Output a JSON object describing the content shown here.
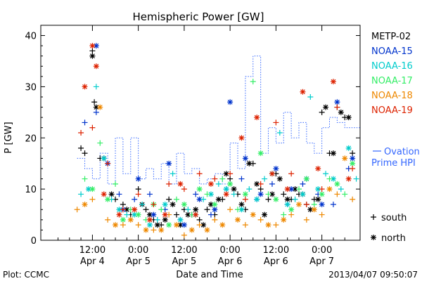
{
  "chart_data": {
    "type": "scatter",
    "title": "Hemispheric Power [GW]",
    "xlabel": "Date and Time",
    "ylabel": "P [GW]",
    "ylim": [
      0,
      42
    ],
    "yticks": [
      0,
      10,
      20,
      30,
      40
    ],
    "xlim": [
      -1.5,
      82
    ],
    "x_unit": "hours since 00:00 Apr 4",
    "xticks": [
      {
        "x": 12,
        "label_time": "12:00",
        "label_date": "Apr 4"
      },
      {
        "x": 24,
        "label_time": "0:00",
        "label_date": "Apr 5"
      },
      {
        "x": 36,
        "label_time": "12:00",
        "label_date": "Apr 5"
      },
      {
        "x": 48,
        "label_time": "0:00",
        "label_date": "Apr 6"
      },
      {
        "x": 60,
        "label_time": "12:00",
        "label_date": "Apr 6"
      },
      {
        "x": 72,
        "label_time": "0:00",
        "label_date": "Apr 7"
      }
    ],
    "legend_position": "right",
    "series": [
      {
        "name": "METP-02",
        "color": "#000000",
        "south": [
          [
            9,
            18
          ],
          [
            10,
            17
          ],
          [
            12,
            37
          ],
          [
            12.5,
            27
          ],
          [
            14,
            16
          ],
          [
            18,
            8
          ],
          [
            20,
            7
          ],
          [
            22,
            5
          ],
          [
            24,
            10
          ],
          [
            26,
            6
          ],
          [
            28,
            4
          ],
          [
            30,
            3
          ],
          [
            32,
            8
          ],
          [
            34,
            5
          ],
          [
            36,
            6
          ],
          [
            38,
            5
          ],
          [
            40,
            4
          ],
          [
            42,
            6
          ],
          [
            44,
            5
          ],
          [
            46,
            8
          ],
          [
            48,
            12
          ],
          [
            50,
            9
          ],
          [
            52,
            6
          ],
          [
            54,
            15
          ],
          [
            56,
            10
          ],
          [
            58,
            8
          ],
          [
            60,
            13
          ],
          [
            62,
            9
          ],
          [
            64,
            8
          ],
          [
            66,
            9
          ],
          [
            68,
            7
          ],
          [
            70,
            8
          ],
          [
            72,
            25
          ],
          [
            74,
            17
          ],
          [
            76,
            26
          ],
          [
            78,
            24
          ],
          [
            80,
            17
          ]
        ],
        "north": [
          [
            12,
            36
          ],
          [
            13,
            26
          ],
          [
            15,
            16
          ],
          [
            17,
            9
          ],
          [
            21,
            6
          ],
          [
            25,
            7
          ],
          [
            27,
            5
          ],
          [
            29,
            3
          ],
          [
            31,
            4
          ],
          [
            33,
            7
          ],
          [
            35,
            3
          ],
          [
            37,
            5
          ],
          [
            39,
            6
          ],
          [
            41,
            3
          ],
          [
            43,
            7
          ],
          [
            45,
            8
          ],
          [
            47,
            13
          ],
          [
            49,
            10
          ],
          [
            51,
            7
          ],
          [
            53,
            15
          ],
          [
            55,
            11
          ],
          [
            57,
            5
          ],
          [
            59,
            9
          ],
          [
            61,
            12
          ],
          [
            63,
            8
          ],
          [
            65,
            10
          ],
          [
            67,
            9
          ],
          [
            69,
            6
          ],
          [
            71,
            8
          ],
          [
            73,
            26
          ],
          [
            75,
            17
          ],
          [
            77,
            25
          ],
          [
            79,
            24
          ]
        ]
      },
      {
        "name": "NOAA-15",
        "color": "#0033cc",
        "south": [
          [
            10,
            23
          ],
          [
            13,
            25
          ],
          [
            15,
            16
          ],
          [
            19,
            9
          ],
          [
            23,
            8
          ],
          [
            27,
            9
          ],
          [
            31,
            6
          ],
          [
            35,
            4
          ],
          [
            39,
            9
          ],
          [
            43,
            5
          ],
          [
            47,
            10
          ],
          [
            51,
            12
          ],
          [
            55,
            8
          ],
          [
            59,
            11
          ],
          [
            63,
            7
          ],
          [
            67,
            11
          ],
          [
            71,
            9
          ],
          [
            75,
            7
          ],
          [
            79,
            14
          ]
        ],
        "north": [
          [
            13,
            38
          ],
          [
            16,
            15
          ],
          [
            20,
            6
          ],
          [
            24,
            12
          ],
          [
            28,
            5
          ],
          [
            32,
            15
          ],
          [
            36,
            3
          ],
          [
            40,
            8
          ],
          [
            44,
            6
          ],
          [
            48,
            27
          ],
          [
            52,
            16
          ],
          [
            56,
            9
          ],
          [
            60,
            14
          ],
          [
            64,
            10
          ],
          [
            68,
            12
          ],
          [
            72,
            7
          ],
          [
            76,
            27
          ],
          [
            80,
            16
          ]
        ]
      },
      {
        "name": "NOAA-16",
        "color": "#00cccc",
        "south": [
          [
            9,
            9
          ],
          [
            13,
            30
          ],
          [
            17,
            8
          ],
          [
            21,
            5
          ],
          [
            25,
            7
          ],
          [
            29,
            4
          ],
          [
            33,
            13
          ],
          [
            37,
            6
          ],
          [
            41,
            8
          ],
          [
            45,
            11
          ],
          [
            49,
            9
          ],
          [
            53,
            10
          ],
          [
            57,
            12
          ],
          [
            61,
            21
          ],
          [
            65,
            8
          ],
          [
            69,
            28
          ],
          [
            73,
            13
          ],
          [
            77,
            10
          ],
          [
            81,
            12
          ]
        ],
        "north": [
          [
            11,
            10
          ],
          [
            15,
            16
          ],
          [
            19,
            6
          ],
          [
            23,
            5
          ],
          [
            27,
            3
          ],
          [
            31,
            7
          ],
          [
            35,
            4
          ],
          [
            39,
            5
          ],
          [
            43,
            9
          ],
          [
            47,
            10
          ],
          [
            51,
            6
          ],
          [
            55,
            8
          ],
          [
            59,
            13
          ],
          [
            63,
            7
          ],
          [
            67,
            9
          ],
          [
            71,
            10
          ],
          [
            75,
            12
          ],
          [
            79,
            18
          ]
        ]
      },
      {
        "name": "NOAA-17",
        "color": "#33ee66",
        "south": [
          [
            10,
            12
          ],
          [
            14,
            19
          ],
          [
            18,
            11
          ],
          [
            22,
            6
          ],
          [
            26,
            4
          ],
          [
            30,
            6
          ],
          [
            34,
            8
          ],
          [
            38,
            5
          ],
          [
            42,
            9
          ],
          [
            46,
            12
          ],
          [
            50,
            6
          ],
          [
            54,
            31
          ],
          [
            58,
            9
          ],
          [
            62,
            5
          ],
          [
            66,
            10
          ],
          [
            70,
            7
          ],
          [
            74,
            12
          ],
          [
            78,
            9
          ]
        ],
        "north": [
          [
            12,
            10
          ],
          [
            16,
            8
          ],
          [
            20,
            4
          ],
          [
            24,
            5
          ],
          [
            28,
            7
          ],
          [
            32,
            3
          ],
          [
            36,
            7
          ],
          [
            40,
            10
          ],
          [
            44,
            7
          ],
          [
            48,
            11
          ],
          [
            52,
            9
          ],
          [
            56,
            17
          ],
          [
            60,
            8
          ],
          [
            64,
            6
          ],
          [
            68,
            12
          ],
          [
            72,
            9
          ],
          [
            76,
            11
          ],
          [
            80,
            15
          ]
        ]
      },
      {
        "name": "NOAA-18",
        "color": "#ee8800",
        "south": [
          [
            8,
            6
          ],
          [
            12,
            8
          ],
          [
            16,
            4
          ],
          [
            20,
            3
          ],
          [
            24,
            3
          ],
          [
            28,
            2
          ],
          [
            32,
            5
          ],
          [
            36,
            1
          ],
          [
            40,
            3
          ],
          [
            44,
            4
          ],
          [
            48,
            6
          ],
          [
            52,
            3
          ],
          [
            56,
            4
          ],
          [
            60,
            3
          ],
          [
            64,
            5
          ],
          [
            68,
            4
          ],
          [
            72,
            5
          ],
          [
            76,
            9
          ],
          [
            80,
            8
          ]
        ],
        "north": [
          [
            10,
            7
          ],
          [
            14,
            26
          ],
          [
            18,
            3
          ],
          [
            22,
            4
          ],
          [
            26,
            2
          ],
          [
            30,
            2
          ],
          [
            34,
            3
          ],
          [
            38,
            2
          ],
          [
            42,
            2
          ],
          [
            46,
            3
          ],
          [
            50,
            4
          ],
          [
            54,
            5
          ],
          [
            58,
            3
          ],
          [
            62,
            4
          ],
          [
            66,
            7
          ],
          [
            70,
            6
          ],
          [
            74,
            10
          ],
          [
            78,
            16
          ]
        ]
      },
      {
        "name": "NOAA-19",
        "color": "#dd2200",
        "south": [
          [
            9,
            21
          ],
          [
            12,
            22
          ],
          [
            16,
            15
          ],
          [
            20,
            6
          ],
          [
            24,
            9
          ],
          [
            28,
            7
          ],
          [
            32,
            11
          ],
          [
            36,
            10
          ],
          [
            40,
            13
          ],
          [
            44,
            12
          ],
          [
            48,
            13
          ],
          [
            52,
            8
          ],
          [
            56,
            11
          ],
          [
            60,
            23
          ],
          [
            64,
            13
          ],
          [
            68,
            7
          ],
          [
            72,
            10
          ],
          [
            76,
            26
          ],
          [
            80,
            14
          ]
        ],
        "north": [
          [
            10,
            30
          ],
          [
            12,
            38
          ],
          [
            13,
            34
          ],
          [
            15,
            9
          ],
          [
            19,
            5
          ],
          [
            23,
            6
          ],
          [
            27,
            4
          ],
          [
            31,
            5
          ],
          [
            35,
            11
          ],
          [
            39,
            5
          ],
          [
            43,
            11
          ],
          [
            47,
            9
          ],
          [
            51,
            20
          ],
          [
            55,
            24
          ],
          [
            59,
            13
          ],
          [
            63,
            10
          ],
          [
            67,
            29
          ],
          [
            71,
            14
          ],
          [
            75,
            31
          ],
          [
            79,
            12
          ]
        ]
      }
    ],
    "ovation": {
      "name": "Ovation Prime HPI",
      "color": "#3366ff",
      "x": [
        8,
        10,
        12,
        14,
        16,
        18,
        20,
        22,
        24,
        26,
        28,
        30,
        32,
        34,
        36,
        38,
        40,
        42,
        44,
        46,
        48,
        50,
        52,
        54,
        56,
        58,
        60,
        62,
        64,
        66,
        68,
        70,
        72,
        74,
        76,
        78,
        80
      ],
      "y": [
        16,
        14,
        12,
        17,
        11,
        20,
        13,
        20,
        12,
        14,
        12,
        15,
        11,
        17,
        13,
        14,
        11,
        12,
        13,
        11,
        19,
        14,
        32,
        36,
        17,
        22,
        19,
        25,
        20,
        23,
        19,
        17,
        22,
        24,
        23,
        22,
        22
      ]
    },
    "markers": {
      "south_label": "south",
      "north_label": "north"
    }
  },
  "footer": {
    "plot_label": "Plot: CCMC",
    "timestamp": "2013/04/07 09:50:07"
  }
}
